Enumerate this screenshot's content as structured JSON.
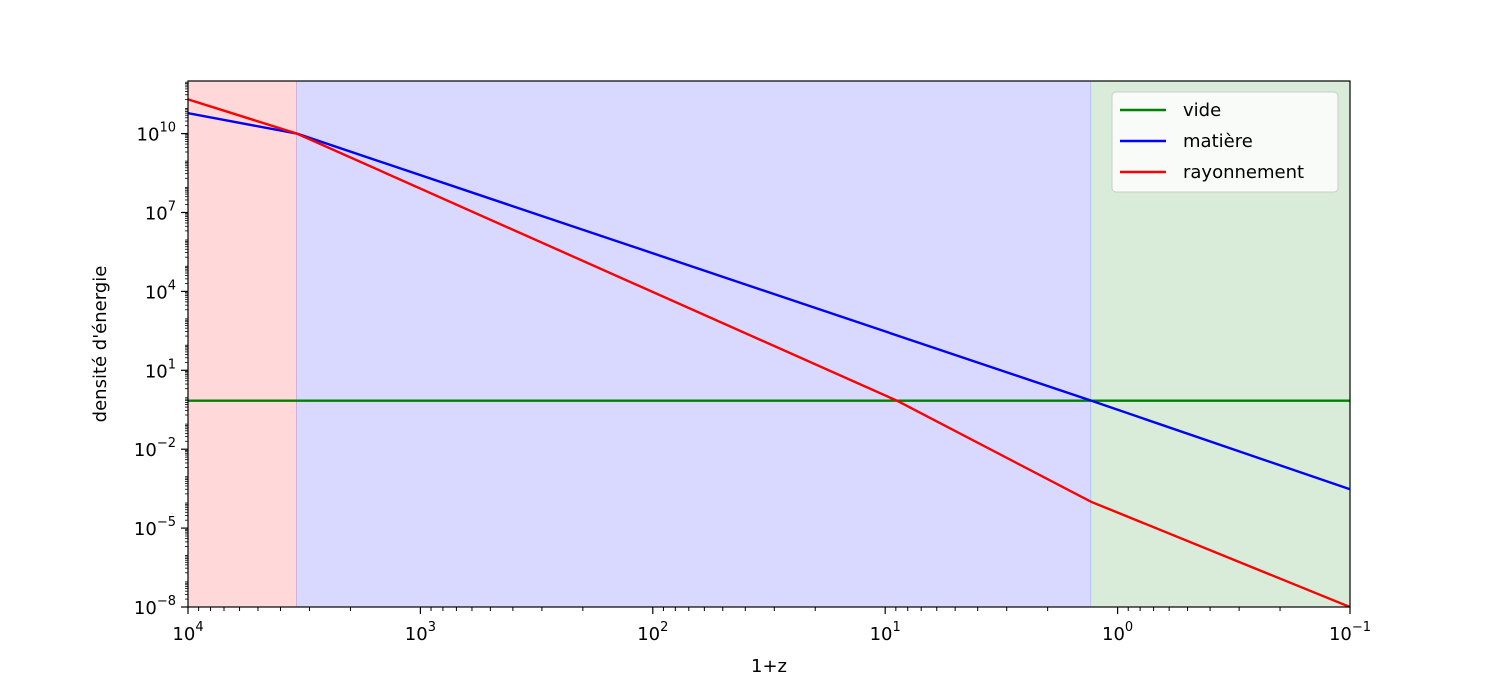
{
  "chart_data": {
    "type": "line",
    "title": "",
    "xlabel": "1+z",
    "ylabel": "densité d'énergie",
    "x_scale": "log",
    "y_scale": "log",
    "x_inverted": true,
    "xlim": [
      10000,
      0.1
    ],
    "ylim": [
      1e-08,
      1000000000000.0
    ],
    "x_ticks": [
      {
        "base": "10",
        "exp": "4",
        "value": 10000
      },
      {
        "base": "10",
        "exp": "3",
        "value": 1000
      },
      {
        "base": "10",
        "exp": "2",
        "value": 100
      },
      {
        "base": "10",
        "exp": "1",
        "value": 10
      },
      {
        "base": "10",
        "exp": "0",
        "value": 1
      },
      {
        "base": "10",
        "exp": "−1",
        "value": 0.1
      }
    ],
    "y_ticks": [
      {
        "base": "10",
        "exp": "−8",
        "value": 1e-08
      },
      {
        "base": "10",
        "exp": "−5",
        "value": 1e-05
      },
      {
        "base": "10",
        "exp": "−2",
        "value": 0.01
      },
      {
        "base": "10",
        "exp": "1",
        "value": 10
      },
      {
        "base": "10",
        "exp": "4",
        "value": 10000
      },
      {
        "base": "10",
        "exp": "7",
        "value": 10000000.0
      },
      {
        "base": "10",
        "exp": "10",
        "value": 10000000000.0
      }
    ],
    "grid": false,
    "legend_position": "top-right",
    "series": [
      {
        "name": "vide",
        "color": "#008000",
        "x": [
          10000,
          0.1
        ],
        "y": [
          0.7,
          0.7
        ]
      },
      {
        "name": "matière",
        "color": "#0000ff",
        "x": [
          10000,
          3400,
          1.3,
          0.1
        ],
        "y": [
          60000000000.0,
          10000000000.0,
          0.7,
          0.0003
        ]
      },
      {
        "name": "rayonnement",
        "color": "#ff0000",
        "x": [
          10000,
          3400,
          8.9,
          1.3,
          0.1
        ],
        "y": [
          200000000000.0,
          10000000000.0,
          0.7,
          0.0001,
          1e-08
        ]
      }
    ],
    "regions": [
      {
        "from": 10000,
        "to": 3400,
        "color": "#ffd9d9",
        "edge": "#c8a6dd"
      },
      {
        "from": 3400,
        "to": 1.3,
        "color": "#d9d9ff",
        "edge": "#a9bfe6"
      },
      {
        "from": 1.3,
        "to": 0.1,
        "color": "#d9ecd9",
        "edge": ""
      }
    ]
  }
}
